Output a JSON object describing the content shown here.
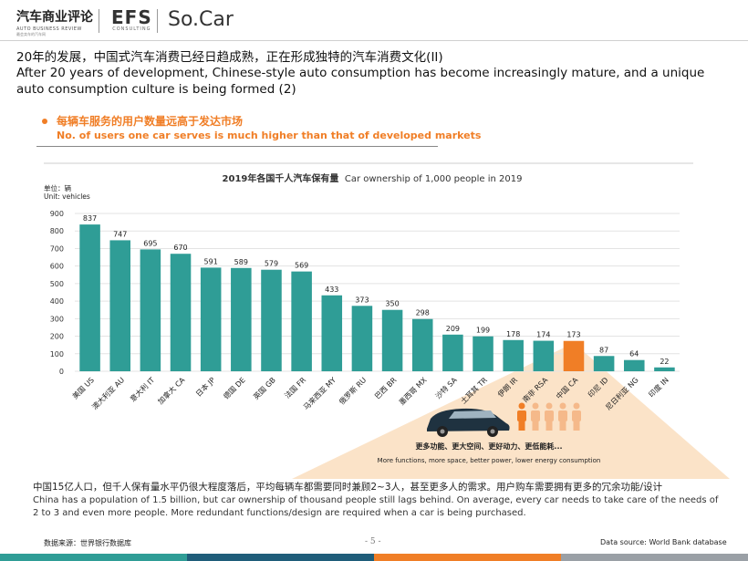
{
  "header": {
    "logo1_cn": "汽车商业评论",
    "logo1_en": "AUTO BUSINESS REVIEW",
    "logo1_sub": "最会卖车的汽车网",
    "logo2": "EFS",
    "logo2_sub": "CONSULTING",
    "logo3": "So.Car"
  },
  "title": {
    "cn": "20年的发展，中国式汽车消费已经日趋成熟，正在形成独特的汽车消费文化(II)",
    "en": "After 20 years of development, Chinese-style auto consumption has become increasingly mature, and a unique auto consumption culture is being formed (2)"
  },
  "bullet": {
    "cn": "每辆车服务的用户数量远高于发达市场",
    "en": "No. of users one car serves is much higher than that of developed markets"
  },
  "chart_data": {
    "type": "bar",
    "title_cn": "2019年各国千人汽车保有量",
    "title_en": "Car ownership of 1,000 people in 2019",
    "unit_cn": "单位：辆",
    "unit_en": "Unit: vehicles",
    "categories": [
      "美国 US",
      "澳大利亚 AU",
      "意大利 IT",
      "加拿大 CA",
      "日本 JP",
      "德国 DE",
      "英国 GB",
      "法国 FR",
      "马来西亚 MY",
      "俄罗斯 RU",
      "巴西 BR",
      "墨西哥 MX",
      "沙特 SA",
      "土耳其 TR",
      "伊朗 IR",
      "南非 RSA",
      "中国 CA",
      "印尼 ID",
      "尼日利亚 NG",
      "印度 IN"
    ],
    "values": [
      837,
      747,
      695,
      670,
      591,
      589,
      579,
      569,
      433,
      373,
      350,
      298,
      209,
      199,
      178,
      174,
      173,
      87,
      64,
      22
    ],
    "highlight_index": 16,
    "ylim": [
      0,
      900
    ],
    "yticks": [
      0,
      100,
      200,
      300,
      400,
      500,
      600,
      700,
      800,
      900
    ],
    "colors": {
      "bar": "#2f9d96",
      "highlight": "#f07e26"
    },
    "grid": true
  },
  "callout": {
    "cn": "更多功能、更大空间、更好动力、更低能耗...",
    "en": "More functions, more space, better power, lower energy consumption"
  },
  "bottom": {
    "cn": "中国15亿人口，但千人保有量水平仍很大程度落后，平均每辆车都需要同时兼顾2~3人，甚至更多人的需求。用户购车需要拥有更多的冗余功能/设计",
    "en": "China has a population of 1.5 billion, but car ownership of thousand people still lags behind. On average, every car needs to take care of the needs of 2 to 3 and even more people. More redundant functions/design are required when a car is being purchased."
  },
  "footer": {
    "source_cn": "数据来源：世界银行数据库",
    "page": "- 5 -",
    "source_en": "Data source: World Bank database"
  }
}
